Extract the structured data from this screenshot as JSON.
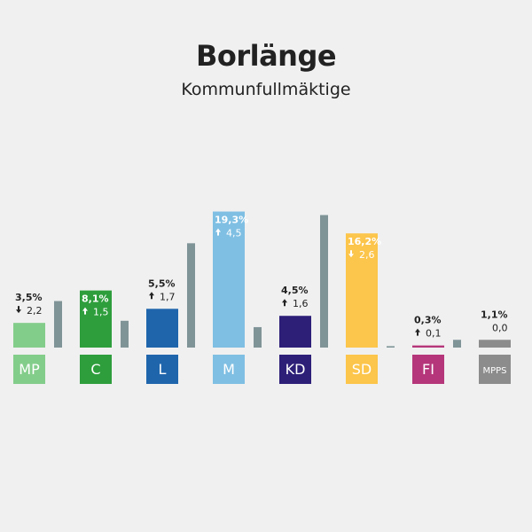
{
  "header": {
    "title": "Borlänge",
    "subtitle": "Kommunfullmäktige"
  },
  "colors": {
    "background": "#f0f0f0",
    "previous_bar": "#7f9497",
    "text_dark": "#222222",
    "text_light": "#ffffff"
  },
  "chart_data": {
    "type": "bar",
    "title": "Borlänge",
    "subtitle": "Kommunfullmäktige",
    "unit": "%",
    "ylim": [
      0,
      25
    ],
    "categories": [
      "MP",
      "C",
      "L",
      "M",
      "KD",
      "SD",
      "FI",
      "MPPS"
    ],
    "series": [
      {
        "values": [
          5.7,
          6.6,
          3.8,
          14.8,
          2.9,
          18.8,
          0.2,
          1.1
        ]
      },
      {
        "values": [
          3.5,
          8.1,
          5.5,
          19.3,
          4.5,
          16.2,
          0.3,
          1.1
        ]
      }
    ],
    "labels": [
      {
        "party": "MP",
        "pct": "3,5%",
        "change": "2,2",
        "direction": "down",
        "color": "#83cd8a",
        "label_inside": false
      },
      {
        "party": "C",
        "pct": "8,1%",
        "change": "1,5",
        "direction": "up",
        "color": "#2e9e3c",
        "label_inside": true
      },
      {
        "party": "L",
        "pct": "5,5%",
        "change": "1,7",
        "direction": "up",
        "color": "#1f65ac",
        "label_inside": false
      },
      {
        "party": "M",
        "pct": "19,3%",
        "change": "4,5",
        "direction": "up",
        "color": "#7fbfe3",
        "label_inside": true
      },
      {
        "party": "KD",
        "pct": "4,5%",
        "change": "1,6",
        "direction": "up",
        "color": "#2d1e78",
        "label_inside": false
      },
      {
        "party": "SD",
        "pct": "16,2%",
        "change": "2,6",
        "direction": "down",
        "color": "#fcc54b",
        "label_inside": true
      },
      {
        "party": "FI",
        "pct": "0,3%",
        "change": "0,1",
        "direction": "up",
        "color": "#b5367a",
        "label_inside": false
      },
      {
        "party": "MPPS",
        "pct": "1,1%",
        "change": "0,0",
        "direction": "none",
        "color": "#8c8c8c",
        "label_inside": false
      }
    ],
    "grid": false,
    "legend": "none"
  }
}
